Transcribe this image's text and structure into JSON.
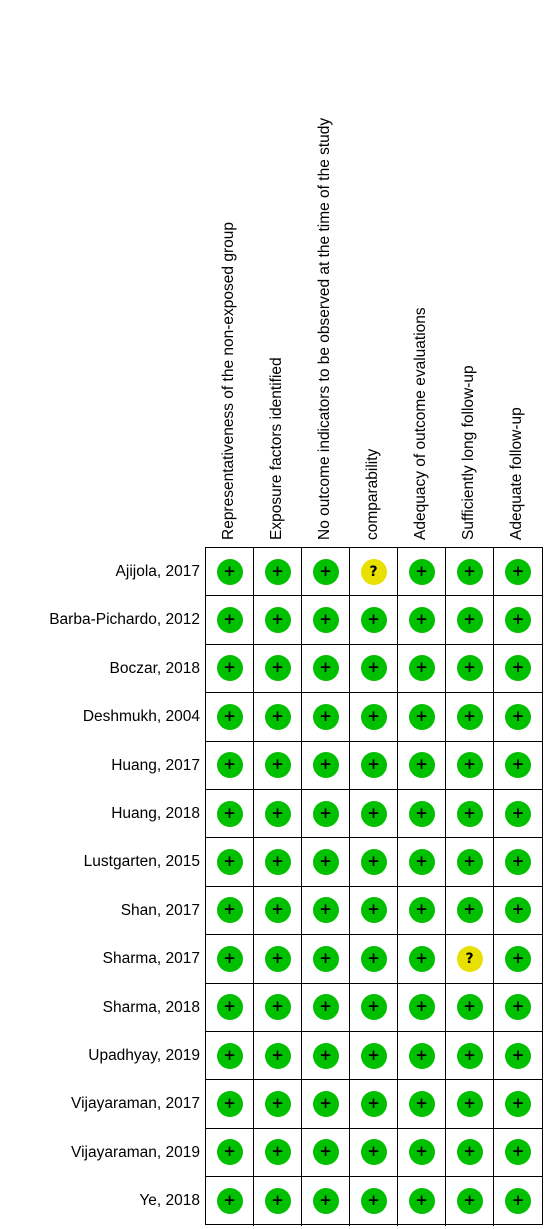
{
  "figure": {
    "domains": [
      "Representativeness of the non-exposed group",
      "Exposure factors identified",
      "No outcome indicators to be observed at the time of the study",
      "comparability",
      "Adequacy of outcome evaluations",
      "Sufficiently long follow-up",
      "Adequate follow-up"
    ],
    "studies": [
      "Ajijola, 2017",
      "Barba-Pichardo, 2012",
      "Boczar, 2018",
      "Deshmukh, 2004",
      "Huang, 2017",
      "Huang, 2018",
      "Lustgarten, 2015",
      "Shan, 2017",
      "Sharma, 2017",
      "Sharma, 2018",
      "Upadhyay, 2019",
      "Vijayaraman, 2017",
      "Vijayaraman, 2019",
      "Ye, 2018"
    ],
    "judgements": [
      [
        "+",
        "+",
        "+",
        "?",
        "+",
        "+",
        "+"
      ],
      [
        "+",
        "+",
        "+",
        "+",
        "+",
        "+",
        "+"
      ],
      [
        "+",
        "+",
        "+",
        "+",
        "+",
        "+",
        "+"
      ],
      [
        "+",
        "+",
        "+",
        "+",
        "+",
        "+",
        "+"
      ],
      [
        "+",
        "+",
        "+",
        "+",
        "+",
        "+",
        "+"
      ],
      [
        "+",
        "+",
        "+",
        "+",
        "+",
        "+",
        "+"
      ],
      [
        "+",
        "+",
        "+",
        "+",
        "+",
        "+",
        "+"
      ],
      [
        "+",
        "+",
        "+",
        "+",
        "+",
        "+",
        "+"
      ],
      [
        "+",
        "+",
        "+",
        "+",
        "+",
        "?",
        "+"
      ],
      [
        "+",
        "+",
        "+",
        "+",
        "+",
        "+",
        "+"
      ],
      [
        "+",
        "+",
        "+",
        "+",
        "+",
        "+",
        "+"
      ],
      [
        "+",
        "+",
        "+",
        "+",
        "+",
        "+",
        "+"
      ],
      [
        "+",
        "+",
        "+",
        "+",
        "+",
        "+",
        "+"
      ],
      [
        "+",
        "+",
        "+",
        "+",
        "+",
        "+",
        "+"
      ]
    ],
    "colors": {
      "low_risk": "#00c000",
      "unclear_risk": "#e8e000",
      "grid_line": "#000000"
    },
    "icons": {
      "+": "low-risk-icon",
      "?": "unclear-risk-icon"
    }
  }
}
